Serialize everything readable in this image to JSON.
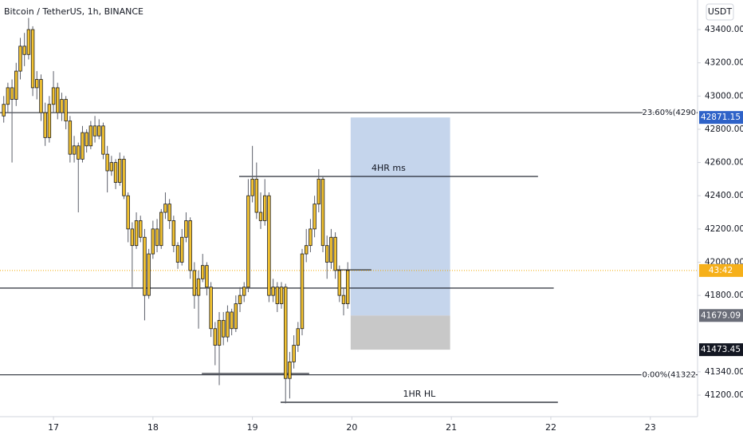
{
  "chart_data": {
    "type": "candlestick",
    "title": "Bitcoin / TetherUS, 1h, BINANCE",
    "currency": "USDT",
    "xlim": [
      -12.9,
      155.4
    ],
    "ylim": [
      41080,
      43578
    ],
    "xticks": [
      {
        "value": 0,
        "label": "17"
      },
      {
        "value": 24,
        "label": "18"
      },
      {
        "value": 48,
        "label": "19"
      },
      {
        "value": 72,
        "label": "20"
      },
      {
        "value": 96,
        "label": "21"
      },
      {
        "value": 120,
        "label": "22"
      },
      {
        "value": 144,
        "label": "23"
      }
    ],
    "yticks": [
      {
        "value": 43400,
        "label": "43400.00"
      },
      {
        "value": 43200,
        "label": "43200.00"
      },
      {
        "value": 43000,
        "label": "43000.00"
      },
      {
        "value": 42800,
        "label": "42800.00"
      },
      {
        "value": 42600,
        "label": "42600.00"
      },
      {
        "value": 42400,
        "label": "42400.00"
      },
      {
        "value": 42200,
        "label": "42200.00"
      },
      {
        "value": 42000,
        "label": "42000.00"
      },
      {
        "value": 41800,
        "label": "41800.00"
      },
      {
        "value": 41340,
        "label": "41340.00"
      },
      {
        "value": 41200,
        "label": "41200.00"
      }
    ],
    "candle_color": "#f2c232",
    "x": [
      -12,
      -11,
      -10,
      -9,
      -8,
      -7,
      -6,
      -5,
      -4,
      -3,
      -2,
      -1,
      0,
      1,
      2,
      3,
      4,
      5,
      6,
      7,
      8,
      9,
      10,
      11,
      12,
      13,
      14,
      15,
      16,
      17,
      18,
      19,
      20,
      21,
      22,
      23,
      24,
      25,
      26,
      27,
      28,
      29,
      30,
      31,
      32,
      33,
      34,
      35,
      36,
      37,
      38,
      39,
      40,
      41,
      42,
      43,
      44,
      45,
      46,
      47,
      48,
      49,
      50,
      51,
      52,
      53,
      54,
      55,
      56,
      57,
      58,
      59,
      60,
      61,
      62,
      63,
      64,
      65,
      66,
      67,
      68,
      69,
      70,
      71
    ],
    "candles": [
      [
        42880,
        43000,
        42840,
        42950
      ],
      [
        42950,
        43080,
        42900,
        43050
      ],
      [
        43050,
        43100,
        42600,
        42980
      ],
      [
        42980,
        43200,
        42940,
        43150
      ],
      [
        43150,
        43350,
        43100,
        43300
      ],
      [
        43300,
        43380,
        43180,
        43250
      ],
      [
        43250,
        43470,
        43220,
        43400
      ],
      [
        43400,
        43420,
        43000,
        43050
      ],
      [
        43050,
        43150,
        42980,
        43100
      ],
      [
        43100,
        43130,
        42850,
        42900
      ],
      [
        42900,
        42960,
        42700,
        42750
      ],
      [
        42750,
        43000,
        42720,
        42950
      ],
      [
        42950,
        43150,
        42900,
        43050
      ],
      [
        43050,
        43080,
        42860,
        42900
      ],
      [
        42900,
        43020,
        42850,
        42980
      ],
      [
        42980,
        43000,
        42800,
        42850
      ],
      [
        42850,
        42880,
        42600,
        42650
      ],
      [
        42650,
        42760,
        42600,
        42700
      ],
      [
        42700,
        42720,
        42300,
        42620
      ],
      [
        42620,
        42820,
        42600,
        42780
      ],
      [
        42780,
        42800,
        42660,
        42700
      ],
      [
        42700,
        42850,
        42680,
        42820
      ],
      [
        42820,
        42880,
        42720,
        42760
      ],
      [
        42760,
        42860,
        42740,
        42820
      ],
      [
        42820,
        42840,
        42620,
        42650
      ],
      [
        42650,
        42700,
        42420,
        42550
      ],
      [
        42550,
        42640,
        42520,
        42600
      ],
      [
        42600,
        42620,
        42440,
        42480
      ],
      [
        42480,
        42660,
        42460,
        42620
      ],
      [
        42620,
        42640,
        42380,
        42400
      ],
      [
        42400,
        42420,
        42120,
        42200
      ],
      [
        42200,
        42240,
        41850,
        42100
      ],
      [
        42100,
        42300,
        42080,
        42250
      ],
      [
        42250,
        42280,
        42120,
        42150
      ],
      [
        42150,
        42200,
        41650,
        41800
      ],
      [
        41800,
        42080,
        41780,
        42050
      ],
      [
        42050,
        42250,
        42020,
        42200
      ],
      [
        42200,
        42260,
        42060,
        42100
      ],
      [
        42100,
        42320,
        42080,
        42300
      ],
      [
        42300,
        42420,
        42260,
        42350
      ],
      [
        42350,
        42380,
        42200,
        42250
      ],
      [
        42250,
        42280,
        42060,
        42100
      ],
      [
        42100,
        42120,
        41960,
        42000
      ],
      [
        42000,
        42200,
        41980,
        42150
      ],
      [
        42150,
        42300,
        42120,
        42250
      ],
      [
        42250,
        42270,
        41900,
        41950
      ],
      [
        41950,
        42000,
        41720,
        41800
      ],
      [
        41800,
        41950,
        41600,
        41900
      ],
      [
        41900,
        42050,
        41880,
        41980
      ],
      [
        41980,
        42000,
        41800,
        41850
      ],
      [
        41850,
        41880,
        41550,
        41600
      ],
      [
        41600,
        41640,
        41380,
        41500
      ],
      [
        41500,
        41700,
        41260,
        41650
      ],
      [
        41650,
        41700,
        41500,
        41550
      ],
      [
        41550,
        41740,
        41520,
        41700
      ],
      [
        41700,
        41720,
        41560,
        41600
      ],
      [
        41600,
        41800,
        41580,
        41750
      ],
      [
        41750,
        41850,
        41700,
        41800
      ],
      [
        41800,
        41880,
        41760,
        41850
      ],
      [
        41850,
        42500,
        41820,
        42400
      ],
      [
        42400,
        42700,
        42360,
        42500
      ],
      [
        42500,
        42600,
        42260,
        42300
      ],
      [
        42300,
        42420,
        42200,
        42250
      ],
      [
        42250,
        42500,
        42220,
        42400
      ],
      [
        42400,
        42420,
        41760,
        41800
      ],
      [
        41800,
        41900,
        41760,
        41850
      ],
      [
        41850,
        41880,
        41700,
        41750
      ],
      [
        41750,
        41880,
        41720,
        41850
      ],
      [
        41850,
        41870,
        41150,
        41300
      ],
      [
        41300,
        41460,
        41180,
        41400
      ],
      [
        41400,
        41560,
        41360,
        41500
      ],
      [
        41500,
        41640,
        41460,
        41600
      ],
      [
        41600,
        42080,
        41560,
        42050
      ],
      [
        42050,
        42200,
        42000,
        42100
      ],
      [
        42100,
        42260,
        42060,
        42200
      ],
      [
        42200,
        42400,
        42150,
        42350
      ],
      [
        42350,
        42560,
        42300,
        42500
      ],
      [
        42500,
        42520,
        42060,
        42100
      ],
      [
        42100,
        42160,
        41900,
        42000
      ],
      [
        42000,
        42200,
        41960,
        42150
      ],
      [
        42150,
        42180,
        41900,
        41950
      ],
      [
        41950,
        41980,
        41760,
        41800
      ],
      [
        41800,
        41840,
        41680,
        41750
      ],
      [
        41750,
        42000,
        41720,
        41950
      ]
    ],
    "fib": [
      {
        "value": 42900,
        "label": "23.60%(4290"
      },
      {
        "value": 41322,
        "label": "0.00%(41322"
      }
    ],
    "lines": [
      {
        "value": 41844,
        "start": -12.9,
        "end": 120.7
      },
      {
        "value": 42516,
        "start": 44.8,
        "end": 116.9,
        "label": "4HR ms"
      },
      {
        "value": 41157,
        "start": 54.8,
        "end": 121.7,
        "label": "1HR HL"
      },
      {
        "value": 41330,
        "start": 35.8,
        "end": 61.7
      },
      {
        "value": 41954,
        "start": 67.9,
        "end": 76.7
      }
    ],
    "position": {
      "target": 42871.15,
      "entry": 41679.09,
      "stop": 41473.45,
      "start": 71.7,
      "end": 95.7
    },
    "last_price": 41950,
    "countdown": "43:42"
  }
}
